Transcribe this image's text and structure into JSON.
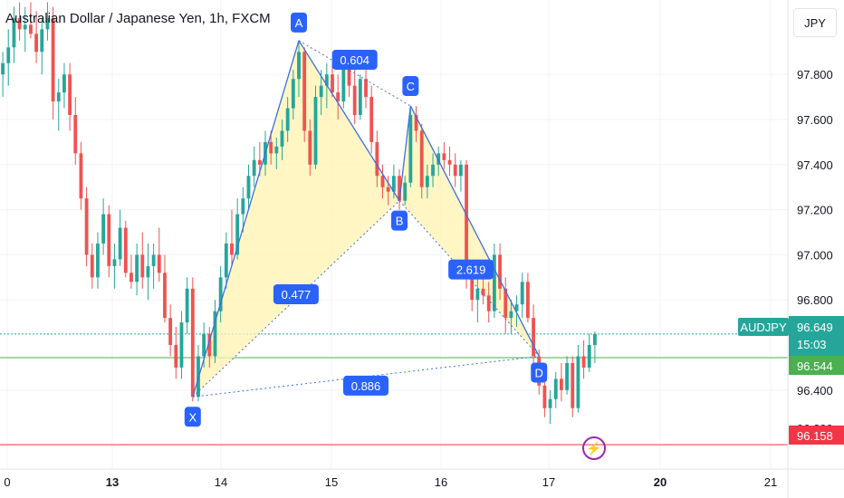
{
  "chart_data": {
    "type": "candlestick",
    "title": "Australian Dollar / Japanese Yen, 1h, FXCM",
    "currency_label": "JPY",
    "symbol": "AUDJPY",
    "y_ticks": [
      "97.800",
      "97.600",
      "97.400",
      "97.200",
      "97.000",
      "96.800",
      "96.400"
    ],
    "y_tick_values": [
      97.8,
      97.6,
      97.4,
      97.2,
      97.0,
      96.8,
      96.4
    ],
    "partial_tick": "96.200",
    "ylim": [
      96.05,
      98.13
    ],
    "x_ticks": [
      {
        "label": "0",
        "bold": false
      },
      {
        "label": "13",
        "bold": true
      },
      {
        "label": "14",
        "bold": false
      },
      {
        "label": "15",
        "bold": false
      },
      {
        "label": "16",
        "bold": false
      },
      {
        "label": "17",
        "bold": false
      },
      {
        "label": "20",
        "bold": true
      },
      {
        "label": "21",
        "bold": false
      }
    ],
    "price_labels": {
      "symbol_price": "96.649",
      "countdown": "15:03",
      "level_green": "96.544",
      "level_red": "96.158"
    },
    "levels": {
      "current": 96.649,
      "green": 96.544,
      "red": 96.158
    },
    "pattern": {
      "points": [
        {
          "label": "X",
          "price": 96.37
        },
        {
          "label": "A",
          "price": 97.95
        },
        {
          "label": "B",
          "price": 97.24
        },
        {
          "label": "C",
          "price": 97.66
        },
        {
          "label": "D",
          "price": 96.55
        }
      ],
      "ratios": [
        "0.477",
        "0.604",
        "2.619",
        "0.886"
      ]
    },
    "colors": {
      "up": "#26a69a",
      "down": "#ef5350",
      "pattern_fill": "#fff3b0",
      "pattern_line": "#3d6ee6",
      "label_bg": "#2962ff",
      "green": "#4caf50",
      "red": "#f23645"
    },
    "candles": [
      [
        97.8,
        97.9,
        97.7,
        97.85
      ],
      [
        97.85,
        98.0,
        97.75,
        97.92
      ],
      [
        97.92,
        98.1,
        97.85,
        98.05
      ],
      [
        98.05,
        98.12,
        97.95,
        98.0
      ],
      [
        98.0,
        98.1,
        97.9,
        98.02
      ],
      [
        98.02,
        98.12,
        97.96,
        97.98
      ],
      [
        97.98,
        98.08,
        97.85,
        97.9
      ],
      [
        97.9,
        98.05,
        97.8,
        98.0
      ],
      [
        98.0,
        98.12,
        97.95,
        98.05
      ],
      [
        98.05,
        98.1,
        97.6,
        97.68
      ],
      [
        97.68,
        97.78,
        97.55,
        97.72
      ],
      [
        97.72,
        97.85,
        97.65,
        97.8
      ],
      [
        97.8,
        97.85,
        97.55,
        97.62
      ],
      [
        97.62,
        97.7,
        97.4,
        97.45
      ],
      [
        97.45,
        97.5,
        97.2,
        97.25
      ],
      [
        97.25,
        97.3,
        96.95,
        97.0
      ],
      [
        97.0,
        97.05,
        96.85,
        96.9
      ],
      [
        96.9,
        97.1,
        96.85,
        97.05
      ],
      [
        97.05,
        97.25,
        97.0,
        97.18
      ],
      [
        97.18,
        97.22,
        96.9,
        96.95
      ],
      [
        96.95,
        97.05,
        96.85,
        96.98
      ],
      [
        96.98,
        97.2,
        96.95,
        97.12
      ],
      [
        97.12,
        97.15,
        96.9,
        96.92
      ],
      [
        96.92,
        97.0,
        96.85,
        96.88
      ],
      [
        96.88,
        97.05,
        96.82,
        97.0
      ],
      [
        97.0,
        97.1,
        96.85,
        96.9
      ],
      [
        96.9,
        97.05,
        96.8,
        96.95
      ],
      [
        96.95,
        97.05,
        96.85,
        97.0
      ],
      [
        97.0,
        97.12,
        96.88,
        96.92
      ],
      [
        96.92,
        97.0,
        96.7,
        96.72
      ],
      [
        96.72,
        96.78,
        96.55,
        96.6
      ],
      [
        96.6,
        96.68,
        96.45,
        96.5
      ],
      [
        96.5,
        96.75,
        96.45,
        96.7
      ],
      [
        96.7,
        96.9,
        96.65,
        96.85
      ],
      [
        96.85,
        96.9,
        96.35,
        96.37
      ],
      [
        96.37,
        96.6,
        96.35,
        96.55
      ],
      [
        96.55,
        96.7,
        96.5,
        96.65
      ],
      [
        96.65,
        96.68,
        96.5,
        96.55
      ],
      [
        96.55,
        96.8,
        96.52,
        96.75
      ],
      [
        96.75,
        96.95,
        96.7,
        96.9
      ],
      [
        96.9,
        97.1,
        96.85,
        97.05
      ],
      [
        97.05,
        97.2,
        96.95,
        97.0
      ],
      [
        97.0,
        97.25,
        96.98,
        97.18
      ],
      [
        97.18,
        97.3,
        97.1,
        97.25
      ],
      [
        97.25,
        97.4,
        97.2,
        97.35
      ],
      [
        97.35,
        97.48,
        97.3,
        97.42
      ],
      [
        97.42,
        97.5,
        97.35,
        97.4
      ],
      [
        97.4,
        97.55,
        97.35,
        97.5
      ],
      [
        97.5,
        97.55,
        97.4,
        97.45
      ],
      [
        97.45,
        97.52,
        97.38,
        97.48
      ],
      [
        97.48,
        97.6,
        97.42,
        97.55
      ],
      [
        97.55,
        97.7,
        97.5,
        97.65
      ],
      [
        97.65,
        97.82,
        97.6,
        97.78
      ],
      [
        97.78,
        97.95,
        97.7,
        97.9
      ],
      [
        97.9,
        97.92,
        97.5,
        97.55
      ],
      [
        97.55,
        97.6,
        97.35,
        97.4
      ],
      [
        97.4,
        97.75,
        97.38,
        97.7
      ],
      [
        97.7,
        97.82,
        97.62,
        97.75
      ],
      [
        97.75,
        97.85,
        97.65,
        97.8
      ],
      [
        97.8,
        97.85,
        97.7,
        97.72
      ],
      [
        97.72,
        97.8,
        97.6,
        97.68
      ],
      [
        97.68,
        97.88,
        97.65,
        97.85
      ],
      [
        97.85,
        97.9,
        97.7,
        97.75
      ],
      [
        97.75,
        97.82,
        97.58,
        97.62
      ],
      [
        97.62,
        97.8,
        97.6,
        97.78
      ],
      [
        97.78,
        97.82,
        97.65,
        97.7
      ],
      [
        97.7,
        97.75,
        97.45,
        97.5
      ],
      [
        97.5,
        97.55,
        97.3,
        97.35
      ],
      [
        97.35,
        97.4,
        97.25,
        97.3
      ],
      [
        97.3,
        97.35,
        97.22,
        97.28
      ],
      [
        97.28,
        97.4,
        97.25,
        97.35
      ],
      [
        97.35,
        97.38,
        97.2,
        97.24
      ],
      [
        97.24,
        97.35,
        97.22,
        97.32
      ],
      [
        97.32,
        97.66,
        97.3,
        97.62
      ],
      [
        97.62,
        97.66,
        97.5,
        97.55
      ],
      [
        97.55,
        97.58,
        97.25,
        97.3
      ],
      [
        97.3,
        97.4,
        97.25,
        97.35
      ],
      [
        97.35,
        97.45,
        97.3,
        97.4
      ],
      [
        97.4,
        97.48,
        97.35,
        97.45
      ],
      [
        97.45,
        97.5,
        97.38,
        97.42
      ],
      [
        97.42,
        97.48,
        97.35,
        97.4
      ],
      [
        97.4,
        97.45,
        97.3,
        97.35
      ],
      [
        97.35,
        97.42,
        97.28,
        97.4
      ],
      [
        97.4,
        97.42,
        96.85,
        96.9
      ],
      [
        96.9,
        96.95,
        96.75,
        96.8
      ],
      [
        96.8,
        96.9,
        96.7,
        96.85
      ],
      [
        96.85,
        96.95,
        96.78,
        96.82
      ],
      [
        96.82,
        96.88,
        96.7,
        96.75
      ],
      [
        96.75,
        97.05,
        96.72,
        97.0
      ],
      [
        97.0,
        97.05,
        96.8,
        96.85
      ],
      [
        96.85,
        96.9,
        96.65,
        96.72
      ],
      [
        96.72,
        96.8,
        96.65,
        96.75
      ],
      [
        96.75,
        96.82,
        96.68,
        96.78
      ],
      [
        96.78,
        96.92,
        96.72,
        96.88
      ],
      [
        96.88,
        96.92,
        96.7,
        96.72
      ],
      [
        96.72,
        96.78,
        96.5,
        96.55
      ],
      [
        96.55,
        96.58,
        96.38,
        96.42
      ],
      [
        96.42,
        96.45,
        96.28,
        96.32
      ],
      [
        96.32,
        96.4,
        96.25,
        96.36
      ],
      [
        96.36,
        96.48,
        96.32,
        96.45
      ],
      [
        96.45,
        96.52,
        96.35,
        96.4
      ],
      [
        96.4,
        96.55,
        96.38,
        96.52
      ],
      [
        96.52,
        96.55,
        96.28,
        96.32
      ],
      [
        96.32,
        96.6,
        96.3,
        96.55
      ],
      [
        96.55,
        96.62,
        96.45,
        96.5
      ],
      [
        96.5,
        96.65,
        96.48,
        96.6
      ],
      [
        96.6,
        96.66,
        96.52,
        96.649
      ]
    ]
  }
}
